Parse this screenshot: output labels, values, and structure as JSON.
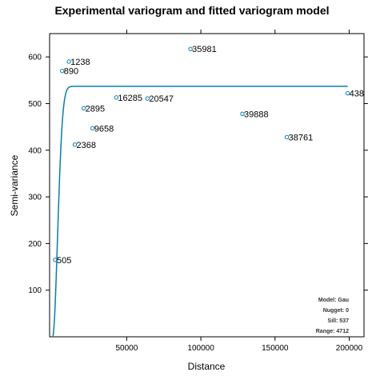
{
  "chart_data": {
    "type": "scatter",
    "title": "Experimental variogram and fitted variogram model",
    "xlabel": "Distance",
    "ylabel": "Semi-variance",
    "xlim": [
      -2000,
      210000
    ],
    "ylim": [
      0,
      650
    ],
    "x_ticks": [
      50000,
      100000,
      150000,
      200000
    ],
    "y_ticks": [
      100,
      200,
      300,
      400,
      500,
      600
    ],
    "x_tick_labels": [
      "50000",
      "100000",
      "150000",
      "200000"
    ],
    "y_tick_labels": [
      "100",
      "200",
      "300",
      "400",
      "500",
      "600"
    ],
    "grid": false,
    "points": [
      {
        "x": 1800,
        "y": 165,
        "label": "505"
      },
      {
        "x": 6500,
        "y": 570,
        "label": "890"
      },
      {
        "x": 11000,
        "y": 590,
        "label": "1238"
      },
      {
        "x": 15000,
        "y": 412,
        "label": "2368"
      },
      {
        "x": 21000,
        "y": 490,
        "label": "2895"
      },
      {
        "x": 27000,
        "y": 447,
        "label": "9658"
      },
      {
        "x": 43000,
        "y": 513,
        "label": "16285"
      },
      {
        "x": 64000,
        "y": 511,
        "label": "20547"
      },
      {
        "x": 93000,
        "y": 617,
        "label": "35981"
      },
      {
        "x": 128000,
        "y": 478,
        "label": "39888"
      },
      {
        "x": 158000,
        "y": 428,
        "label": "38761"
      },
      {
        "x": 199000,
        "y": 522,
        "label": "438"
      }
    ],
    "model": {
      "type": "Gau",
      "nugget": 0,
      "sill": 537,
      "range": 4712,
      "color": "#0080b0",
      "legend_position": "bottom-right",
      "lines": [
        "Model: Gau",
        "Nugget: 0",
        "Sill: 537",
        "Range: 4712"
      ]
    }
  }
}
